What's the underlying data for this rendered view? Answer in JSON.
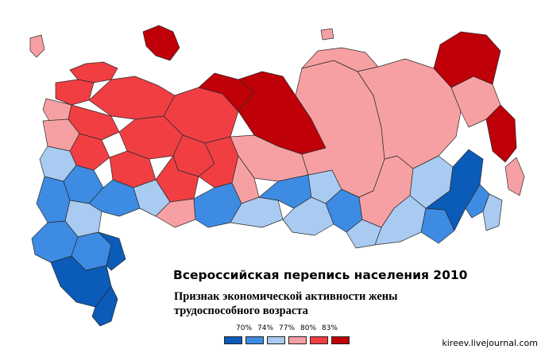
{
  "title": "Всероссийская перепись населения 2010",
  "subtitle": "Признак экономической активности жены трудоспособного возраста",
  "credit": "kireev.livejournal.com",
  "legend": {
    "labels": [
      "70%",
      "74%",
      "77%",
      "80%",
      "83%"
    ],
    "colors": [
      "#0b5bb8",
      "#3d8be3",
      "#a9cbf1",
      "#f7a0a3",
      "#f03e43",
      "#c00008"
    ]
  },
  "palette": {
    "dark_blue": "#0b5bb8",
    "blue": "#3d8be3",
    "light_blue": "#a9cbf1",
    "light_red": "#f7a0a3",
    "red": "#f03e43",
    "dark_red": "#c00008"
  }
}
